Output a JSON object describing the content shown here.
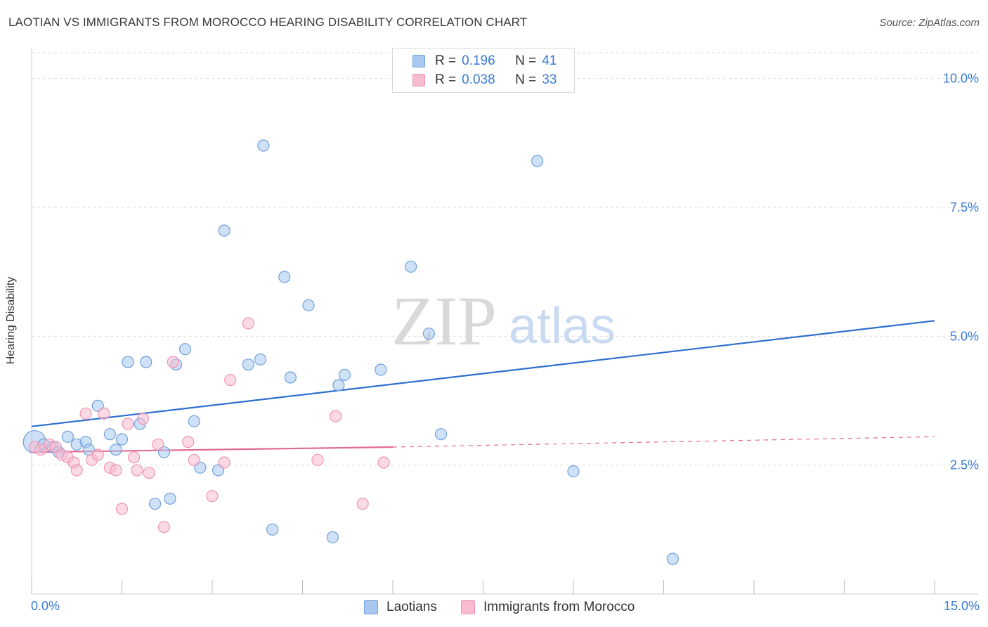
{
  "title": "LAOTIAN VS IMMIGRANTS FROM MOROCCO HEARING DISABILITY CORRELATION CHART",
  "source": "Source: ZipAtlas.com",
  "watermark": {
    "zip": "ZIP",
    "atlas": "atlas"
  },
  "legend_top": {
    "rows": [
      {
        "r_label": "R =",
        "r_value": "0.196",
        "n_label": "N =",
        "n_value": "41"
      },
      {
        "r_label": "R =",
        "r_value": "0.038",
        "n_label": "N =",
        "n_value": "33"
      }
    ]
  },
  "legend_bottom": {
    "series1": "Laotians",
    "series2": "Immigrants from Morocco"
  },
  "colors": {
    "laotian_fill": "#a8c8f0",
    "laotian_stroke": "#6fa0dc",
    "laotian_line": "#2f6fd0",
    "morocco_fill": "#f7bcd0",
    "morocco_stroke": "#ee94b3",
    "morocco_line": "#e36a96",
    "tick_label": "#3a7bd5",
    "grid": "#dddddd"
  },
  "chart_data": {
    "type": "scatter",
    "title": "LAOTIAN VS IMMIGRANTS FROM MOROCCO HEARING DISABILITY CORRELATION CHART",
    "xlabel": "",
    "ylabel": "Hearing Disability",
    "xlim": [
      0,
      15
    ],
    "ylim": [
      0,
      10.5
    ],
    "x_tick_labels": [
      "0.0%",
      "15.0%"
    ],
    "y_ticks": [
      2.5,
      5.0,
      7.5,
      10.0
    ],
    "y_tick_labels": [
      "2.5%",
      "5.0%",
      "7.5%",
      "10.0%"
    ],
    "grid": true,
    "legend_position": "top-center",
    "series": [
      {
        "name": "Laotians",
        "points": [
          {
            "x": 0.05,
            "y": 2.95
          },
          {
            "x": 0.2,
            "y": 2.9
          },
          {
            "x": 0.35,
            "y": 2.85
          },
          {
            "x": 0.45,
            "y": 2.75
          },
          {
            "x": 0.6,
            "y": 3.05
          },
          {
            "x": 0.75,
            "y": 2.9
          },
          {
            "x": 0.9,
            "y": 2.95
          },
          {
            "x": 0.95,
            "y": 2.8
          },
          {
            "x": 1.1,
            "y": 3.65
          },
          {
            "x": 1.3,
            "y": 3.1
          },
          {
            "x": 1.4,
            "y": 2.8
          },
          {
            "x": 1.5,
            "y": 3.0
          },
          {
            "x": 1.6,
            "y": 4.5
          },
          {
            "x": 1.8,
            "y": 3.3
          },
          {
            "x": 1.9,
            "y": 4.5
          },
          {
            "x": 2.05,
            "y": 1.75
          },
          {
            "x": 2.2,
            "y": 2.75
          },
          {
            "x": 2.3,
            "y": 1.85
          },
          {
            "x": 2.4,
            "y": 4.45
          },
          {
            "x": 2.55,
            "y": 4.75
          },
          {
            "x": 2.7,
            "y": 3.35
          },
          {
            "x": 2.8,
            "y": 2.45
          },
          {
            "x": 3.1,
            "y": 2.4
          },
          {
            "x": 3.2,
            "y": 7.05
          },
          {
            "x": 3.6,
            "y": 4.45
          },
          {
            "x": 3.8,
            "y": 4.55
          },
          {
            "x": 3.85,
            "y": 8.7
          },
          {
            "x": 4.0,
            "y": 1.25
          },
          {
            "x": 4.2,
            "y": 6.15
          },
          {
            "x": 4.3,
            "y": 4.2
          },
          {
            "x": 4.6,
            "y": 5.6
          },
          {
            "x": 5.0,
            "y": 1.1
          },
          {
            "x": 5.1,
            "y": 4.05
          },
          {
            "x": 5.2,
            "y": 4.25
          },
          {
            "x": 5.8,
            "y": 4.35
          },
          {
            "x": 6.3,
            "y": 6.35
          },
          {
            "x": 6.6,
            "y": 5.05
          },
          {
            "x": 6.8,
            "y": 3.1
          },
          {
            "x": 8.4,
            "y": 8.4
          },
          {
            "x": 9.0,
            "y": 2.38
          },
          {
            "x": 10.65,
            "y": 0.68
          }
        ]
      },
      {
        "name": "Immigrants from Morocco",
        "points": [
          {
            "x": 0.05,
            "y": 2.85
          },
          {
            "x": 0.15,
            "y": 2.8
          },
          {
            "x": 0.3,
            "y": 2.9
          },
          {
            "x": 0.4,
            "y": 2.85
          },
          {
            "x": 0.5,
            "y": 2.7
          },
          {
            "x": 0.6,
            "y": 2.65
          },
          {
            "x": 0.7,
            "y": 2.55
          },
          {
            "x": 0.75,
            "y": 2.4
          },
          {
            "x": 0.9,
            "y": 3.5
          },
          {
            "x": 1.0,
            "y": 2.6
          },
          {
            "x": 1.1,
            "y": 2.7
          },
          {
            "x": 1.2,
            "y": 3.5
          },
          {
            "x": 1.3,
            "y": 2.45
          },
          {
            "x": 1.4,
            "y": 2.4
          },
          {
            "x": 1.5,
            "y": 1.65
          },
          {
            "x": 1.6,
            "y": 3.3
          },
          {
            "x": 1.7,
            "y": 2.65
          },
          {
            "x": 1.75,
            "y": 2.4
          },
          {
            "x": 1.85,
            "y": 3.4
          },
          {
            "x": 1.95,
            "y": 2.35
          },
          {
            "x": 2.1,
            "y": 2.9
          },
          {
            "x": 2.2,
            "y": 1.3
          },
          {
            "x": 2.35,
            "y": 4.5
          },
          {
            "x": 2.6,
            "y": 2.95
          },
          {
            "x": 2.7,
            "y": 2.6
          },
          {
            "x": 3.0,
            "y": 1.9
          },
          {
            "x": 3.2,
            "y": 2.55
          },
          {
            "x": 3.3,
            "y": 4.15
          },
          {
            "x": 3.6,
            "y": 5.25
          },
          {
            "x": 4.75,
            "y": 2.6
          },
          {
            "x": 5.05,
            "y": 3.45
          },
          {
            "x": 5.5,
            "y": 1.75
          },
          {
            "x": 5.85,
            "y": 2.55
          }
        ]
      }
    ],
    "trend_lines": [
      {
        "series": "Laotians",
        "x": [
          0,
          15
        ],
        "y": [
          3.25,
          5.3
        ],
        "style": "solid"
      },
      {
        "series": "Immigrants from Morocco",
        "x": [
          0,
          6.0
        ],
        "y": [
          2.75,
          2.85
        ],
        "style": "solid"
      },
      {
        "series": "Immigrants from Morocco",
        "x": [
          6.0,
          15
        ],
        "y": [
          2.85,
          3.05
        ],
        "style": "dashed"
      }
    ]
  }
}
